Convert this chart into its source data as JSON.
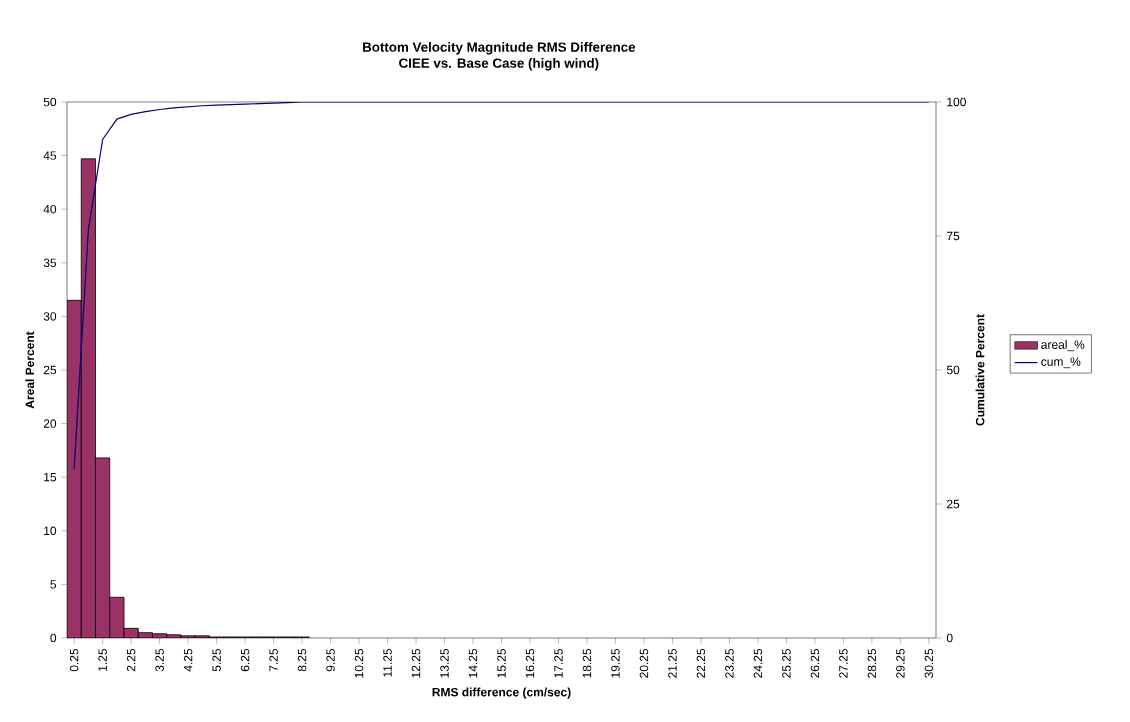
{
  "chart_data": {
    "type": "bar",
    "title": "Bottom Velocity Magnitude RMS Difference",
    "subtitle": "CIEE vs. Base Case (high wind)",
    "xlabel": "RMS difference (cm/sec)",
    "ylabel": "Areal Percent",
    "y2label": "Cumulative Percent",
    "categories": [
      "0.25",
      null,
      "1.25",
      null,
      "2.25",
      null,
      "3.25",
      null,
      "4.25",
      null,
      "5.25",
      null,
      "6.25",
      null,
      "7.25",
      null,
      "8.25",
      null,
      "9.25",
      null,
      "10.25",
      null,
      "11.25",
      null,
      "12.25",
      null,
      "13.25",
      null,
      "14.25",
      null,
      "15.25",
      null,
      "16.25",
      null,
      "17.25",
      null,
      "18.25",
      null,
      "19.25",
      null,
      "20.25",
      null,
      "21.25",
      null,
      "22.25",
      null,
      "23.25",
      null,
      "24.25",
      null,
      "25.25",
      null,
      "26.25",
      null,
      "27.25",
      null,
      "28.25",
      null,
      "29.25",
      null,
      "30.25"
    ],
    "series": [
      {
        "name": "areal_%",
        "color": "#993366",
        "values": [
          31.5,
          44.7,
          16.8,
          3.8,
          0.9,
          0.5,
          0.4,
          0.3,
          0.2,
          0.2,
          0.1,
          0.1,
          0.1,
          0.1,
          0.1,
          0.1,
          0.1,
          null,
          null,
          null,
          null,
          null,
          null,
          null,
          null,
          null,
          null,
          null,
          null,
          null,
          null,
          null,
          null,
          null,
          null,
          null,
          null,
          null,
          null,
          null,
          null,
          null,
          null,
          null,
          null,
          null,
          null,
          null,
          null,
          null,
          null,
          null,
          null,
          null,
          null,
          null,
          null,
          null,
          null,
          null,
          null
        ]
      },
      {
        "name": "cum_%",
        "type": "line",
        "axis": "y2",
        "color": "#000080",
        "values": [
          31.5,
          76.2,
          93,
          96.8,
          97.7,
          98.2,
          98.6,
          98.9,
          99.1,
          99.3,
          99.4,
          99.5,
          99.6,
          99.7,
          99.8,
          99.9,
          100,
          100,
          100,
          100,
          100,
          100,
          100,
          100,
          100,
          100,
          100,
          100,
          100,
          100,
          100,
          100,
          100,
          100,
          100,
          100,
          100,
          100,
          100,
          100,
          100,
          100,
          100,
          100,
          100,
          100,
          100,
          100,
          100,
          100,
          100,
          100,
          100,
          100,
          100,
          100,
          100,
          100,
          100,
          100,
          100
        ]
      }
    ],
    "ylim": [
      0,
      50
    ],
    "yticks": [
      0,
      5,
      10,
      15,
      20,
      25,
      30,
      35,
      40,
      45,
      50
    ],
    "y2lim": [
      0,
      100
    ],
    "y2ticks": [
      0,
      25,
      50,
      75,
      100
    ],
    "legend": "right"
  }
}
